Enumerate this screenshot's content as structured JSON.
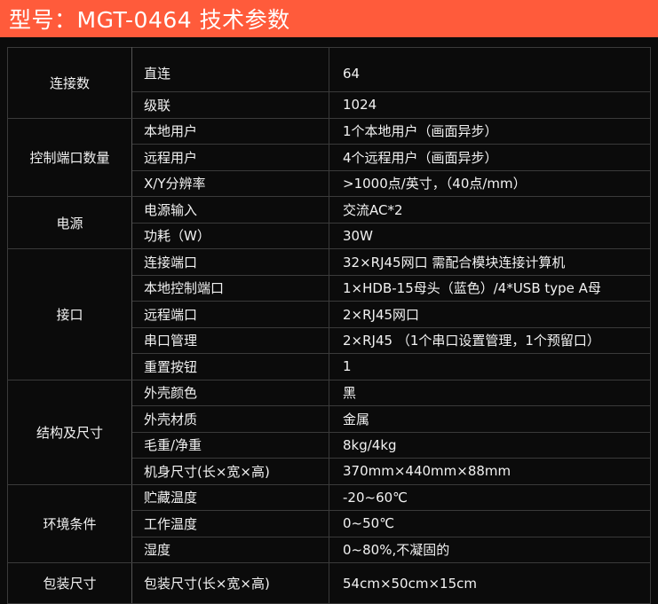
{
  "title": "型号：MGT-0464 技术参数",
  "colors": {
    "header": "#ff5b3b",
    "background": "#0b0b0b",
    "text": "#f2f2f2"
  },
  "groups": [
    {
      "name": "连接数",
      "rows": [
        [
          "直连",
          "64"
        ],
        [
          "级联",
          "1024"
        ]
      ]
    },
    {
      "name": "控制端口数量",
      "rows": [
        [
          "本地用户",
          "1个本地用户（画面异步）"
        ],
        [
          "远程用户",
          "4个远程用户（画面异步）"
        ],
        [
          "X/Y分辨率",
          ">1000点/英寸，（40点/mm）"
        ]
      ]
    },
    {
      "name": "电源",
      "rows": [
        [
          "电源输入",
          "交流AC*2"
        ],
        [
          "功耗（W）",
          "30W"
        ]
      ]
    },
    {
      "name": "接口",
      "rows": [
        [
          "连接端口",
          "32×RJ45网口  需配合模块连接计算机"
        ],
        [
          "本地控制端口",
          "1×HDB-15母头（蓝色）/4*USB type A母"
        ],
        [
          "远程端口",
          "2×RJ45网口"
        ],
        [
          "串口管理",
          "2×RJ45 （1个串口设置管理，1个预留口）"
        ],
        [
          "重置按钮",
          "1"
        ]
      ]
    },
    {
      "name": "结构及尺寸",
      "rows": [
        [
          "外壳颜色",
          "黑"
        ],
        [
          "外壳材质",
          "金属"
        ],
        [
          "毛重/净重",
          "8kg/4kg"
        ],
        [
          "机身尺寸(长×宽×高)",
          "370mm×440mm×88mm"
        ]
      ]
    },
    {
      "name": "环境条件",
      "rows": [
        [
          "贮藏温度",
          "-20~60℃"
        ],
        [
          "工作温度",
          "0~50℃"
        ],
        [
          "湿度",
          "0~80%,不凝固的"
        ]
      ]
    },
    {
      "name": "包装尺寸",
      "rows": [
        [
          "包装尺寸(长×宽×高)",
          "54cm×50cm×15cm"
        ]
      ]
    }
  ]
}
